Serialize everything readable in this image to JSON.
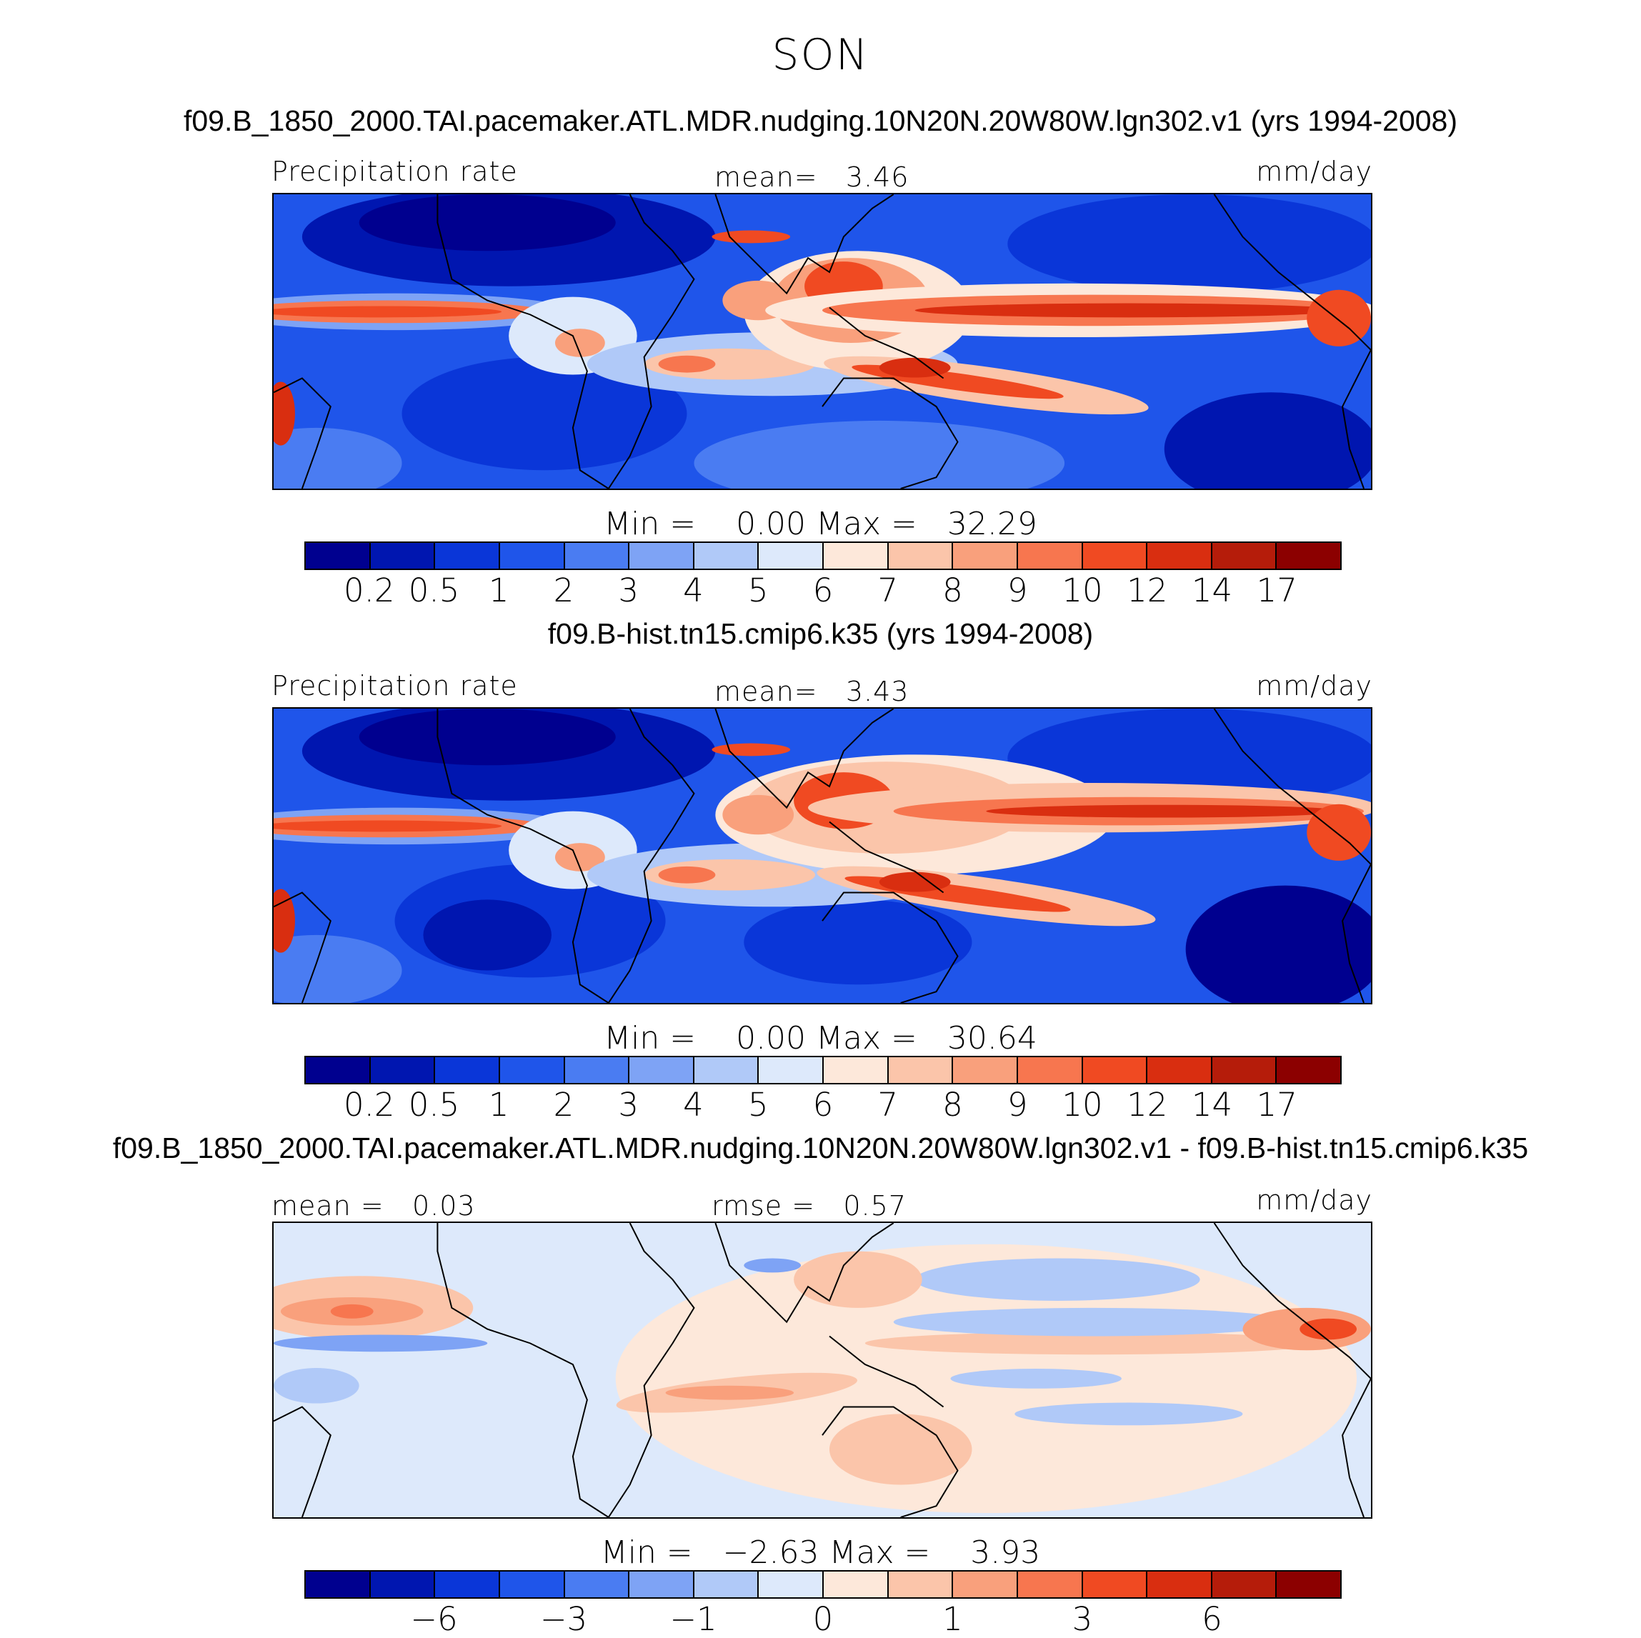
{
  "figure": {
    "season": "SON",
    "units": "mm/day"
  },
  "panels": [
    {
      "title": "f09.B_1850_2000.TAI.pacemaker.ATL.MDR.nudging.10N20N.20W80W.lgn302.v1 (yrs 1994-2008)",
      "variable": "Precipitation rate",
      "mean_label": "mean=",
      "mean_value": "3.46",
      "units": "mm/day",
      "min_label": "Min =",
      "min_value": "0.00",
      "max_label": "Max =",
      "max_value": "32.29",
      "colorbar_ticks": [
        "0.2",
        "0.5",
        "1",
        "2",
        "3",
        "4",
        "5",
        "6",
        "7",
        "8",
        "9",
        "10",
        "12",
        "14",
        "17"
      ]
    },
    {
      "title": "f09.B-hist.tn15.cmip6.k35 (yrs 1994-2008)",
      "variable": "Precipitation rate",
      "mean_label": "mean=",
      "mean_value": "3.43",
      "units": "mm/day",
      "min_label": "Min =",
      "min_value": "0.00",
      "max_label": "Max =",
      "max_value": "30.64",
      "colorbar_ticks": [
        "0.2",
        "0.5",
        "1",
        "2",
        "3",
        "4",
        "5",
        "6",
        "7",
        "8",
        "9",
        "10",
        "12",
        "14",
        "17"
      ]
    },
    {
      "title": "f09.B_1850_2000.TAI.pacemaker.ATL.MDR.nudging.10N20N.20W80W.lgn302.v1 - f09.B-hist.tn15.cmip6.k35",
      "mean_label": "mean =",
      "mean_value": "0.03",
      "rmse_label": "rmse =",
      "rmse_value": "0.57",
      "units": "mm/day",
      "min_label": "Min =",
      "min_value": "−2.63",
      "max_label": "Max =",
      "max_value": "3.93",
      "colorbar_ticks": [
        "−6",
        "−3",
        "−1",
        "0",
        "1",
        "3",
        "6"
      ]
    }
  ],
  "colors": {
    "scale": [
      "#00008f",
      "#0016b0",
      "#0a36d8",
      "#1f55ea",
      "#4a7cf2",
      "#7ea3f5",
      "#b0c9f8",
      "#dde9fb",
      "#fde8da",
      "#fbc5aa",
      "#f9a07c",
      "#f7764f",
      "#f04a22",
      "#d92e10",
      "#b51c0a",
      "#8c0000"
    ]
  }
}
